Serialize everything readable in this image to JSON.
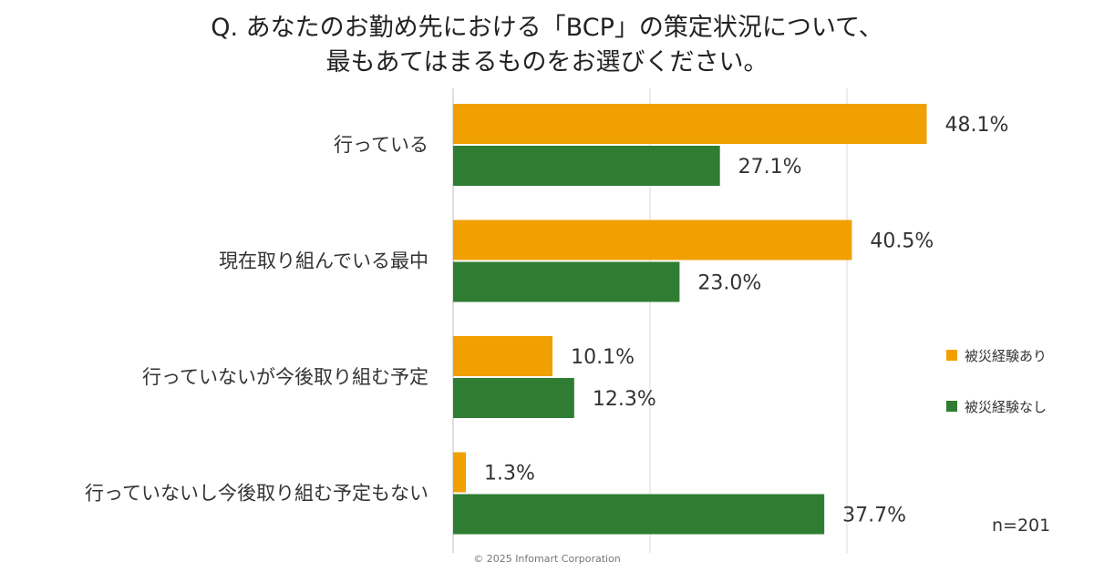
{
  "title": {
    "line1": "Q. あなたのお勤め先における「BCP」の策定状況について、",
    "line2": "最もあてはまるものをお選びください。"
  },
  "chart_data": {
    "type": "bar",
    "orientation": "horizontal",
    "categories": [
      "行っている",
      "現在取り組んでいる最中",
      "行っていないが今後取り組む予定",
      "行っていないし今後取り組む予定もない"
    ],
    "series": [
      {
        "name": "被災経験あり",
        "values": [
          48.1,
          40.5,
          10.1,
          1.3
        ],
        "color": "#F0A000"
      },
      {
        "name": "被災経験なし",
        "values": [
          27.1,
          23.0,
          12.3,
          37.7
        ],
        "color": "#2E7D32"
      }
    ],
    "value_labels": [
      [
        "48.1%",
        "40.5%",
        "10.1%",
        "1.3%"
      ],
      [
        "27.1%",
        "23.0%",
        "12.3%",
        "37.7%"
      ]
    ],
    "xlim": [
      0,
      60
    ],
    "grid": true,
    "legend_position": "right"
  },
  "legend": {
    "items": [
      "被災経験あり",
      "被災経験なし"
    ]
  },
  "sample_note": "n=201",
  "footer": "© 2025 Infomart Corporation"
}
